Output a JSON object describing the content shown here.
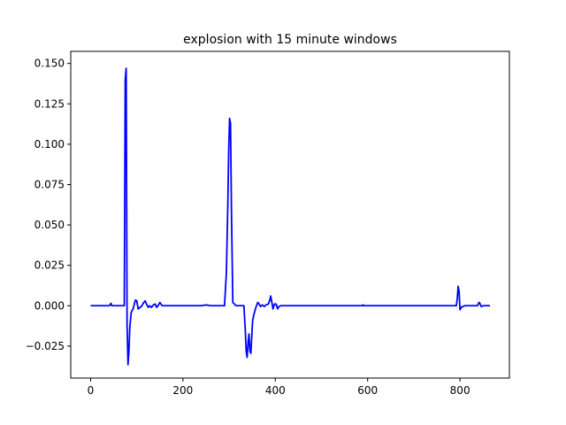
{
  "chart_data": {
    "type": "line",
    "title": "explosion with 15 minute windows",
    "xlabel": "",
    "ylabel": "",
    "xlim": [
      -43,
      907
    ],
    "ylim": [
      -0.0448,
      0.1575
    ],
    "xticks": [
      0,
      200,
      400,
      600,
      800
    ],
    "yticks": [
      -0.025,
      0.0,
      0.025,
      0.05,
      0.075,
      0.1,
      0.125,
      0.15
    ],
    "xtick_labels": [
      "0",
      "200",
      "400",
      "600",
      "800"
    ],
    "ytick_labels": [
      "−0.025",
      "0.000",
      "0.025",
      "0.050",
      "0.075",
      "0.100",
      "0.125",
      "0.150"
    ],
    "grid": false,
    "series": [
      {
        "color": "#0000ff",
        "x": [
          0,
          40,
          42,
          44,
          46,
          60,
          73,
          75,
          77,
          79,
          81,
          83,
          85,
          88,
          92,
          97,
          100,
          103,
          107,
          110,
          114,
          118,
          122,
          125,
          128,
          132,
          136,
          140,
          143,
          146,
          150,
          155,
          170,
          200,
          240,
          250,
          260,
          290,
          294,
          297,
          299,
          301,
          303,
          305,
          308,
          315,
          325,
          332,
          335,
          337,
          339,
          341,
          343,
          345,
          347,
          349,
          351,
          354,
          358,
          362,
          365,
          368,
          372,
          376,
          380,
          385,
          388,
          390,
          392,
          395,
          398,
          402,
          405,
          408,
          412,
          420,
          450,
          500,
          588,
          590,
          592,
          600,
          700,
          780,
          792,
          794,
          796,
          798,
          800,
          803,
          810,
          830,
          838,
          840,
          842,
          846,
          850,
          865
        ],
        "y": [
          0,
          0,
          0.0005,
          0.0015,
          0,
          0,
          0,
          0.14,
          0.147,
          -0.012,
          -0.0365,
          -0.028,
          -0.013,
          -0.004,
          -0.002,
          0.0035,
          0.003,
          -0.002,
          -0.001,
          -0.0005,
          0.0015,
          0.003,
          0.0005,
          -0.001,
          0,
          -0.001,
          0.0005,
          0.001,
          -0.001,
          0,
          0.002,
          0,
          0,
          0,
          0,
          0.0005,
          0,
          0,
          0.02,
          0.06,
          0.095,
          0.116,
          0.113,
          0.06,
          0.002,
          0,
          0,
          0,
          -0.015,
          -0.0285,
          -0.032,
          -0.023,
          -0.0175,
          -0.028,
          -0.0295,
          -0.019,
          -0.009,
          -0.005,
          -0.001,
          0.002,
          0.001,
          -0.0005,
          0.0005,
          -0.0005,
          0.0005,
          0.001,
          0.0035,
          0.006,
          0.003,
          -0.002,
          0.001,
          0.001,
          -0.002,
          -0.0005,
          0,
          0,
          0,
          0,
          0,
          0.0005,
          0,
          0,
          0,
          0,
          0,
          0.004,
          0.012,
          0.009,
          -0.0025,
          -0.001,
          0,
          0,
          0,
          0.0015,
          0.002,
          -0.0005,
          0,
          0
        ]
      }
    ]
  }
}
